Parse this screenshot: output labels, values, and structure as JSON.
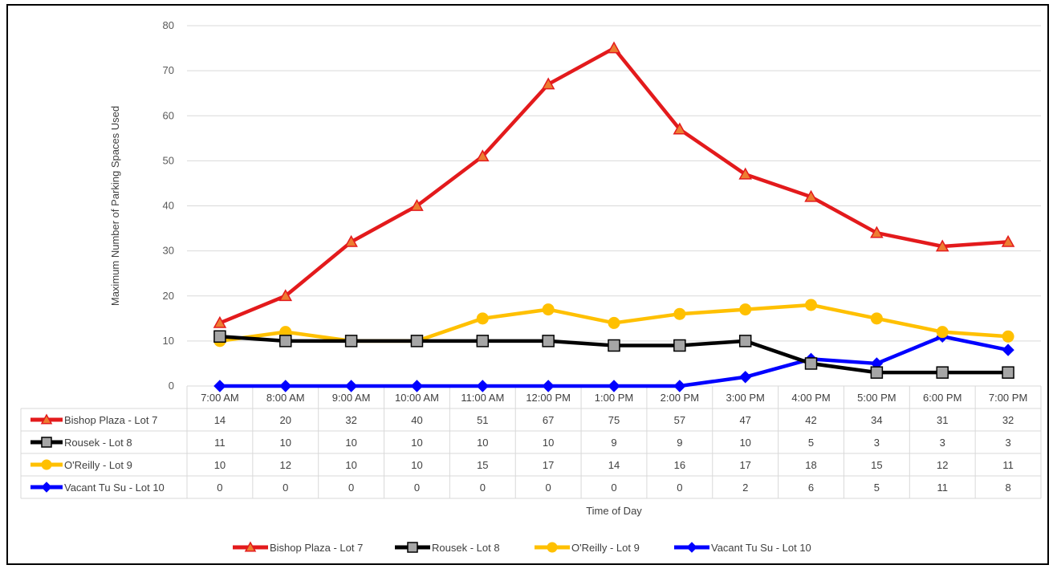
{
  "chart_data": {
    "type": "line",
    "title": "",
    "xlabel": "Time of Day",
    "ylabel": "Maximum Number of Parking Spaces Used",
    "ylim": [
      0,
      80
    ],
    "yticks": [
      0,
      10,
      20,
      30,
      40,
      50,
      60,
      70,
      80
    ],
    "grid": "horizontal",
    "legend_position": "bottom",
    "data_table": true,
    "categories": [
      "7:00 AM",
      "8:00 AM",
      "9:00 AM",
      "10:00 AM",
      "11:00 AM",
      "12:00 PM",
      "1:00 PM",
      "2:00 PM",
      "3:00 PM",
      "4:00 PM",
      "5:00 PM",
      "6:00 PM",
      "7:00 PM"
    ],
    "series": [
      {
        "name": "Bishop Plaza - Lot 7",
        "color": "#e31a1c",
        "marker": "triangle",
        "values": [
          14,
          20,
          32,
          40,
          51,
          67,
          75,
          57,
          47,
          42,
          34,
          31,
          32
        ]
      },
      {
        "name": "Rousek - Lot 8",
        "color": "#000000",
        "marker": "square",
        "values": [
          11,
          10,
          10,
          10,
          10,
          10,
          9,
          9,
          10,
          5,
          3,
          3,
          3
        ]
      },
      {
        "name": "O'Reilly - Lot 9",
        "color": "#ffc000",
        "marker": "circle",
        "values": [
          10,
          12,
          10,
          10,
          15,
          17,
          14,
          16,
          17,
          18,
          15,
          12,
          11
        ]
      },
      {
        "name": "Vacant Tu Su - Lot 10",
        "color": "#0000ff",
        "marker": "diamond",
        "values": [
          0,
          0,
          0,
          0,
          0,
          0,
          0,
          0,
          2,
          6,
          5,
          11,
          8
        ]
      }
    ]
  }
}
